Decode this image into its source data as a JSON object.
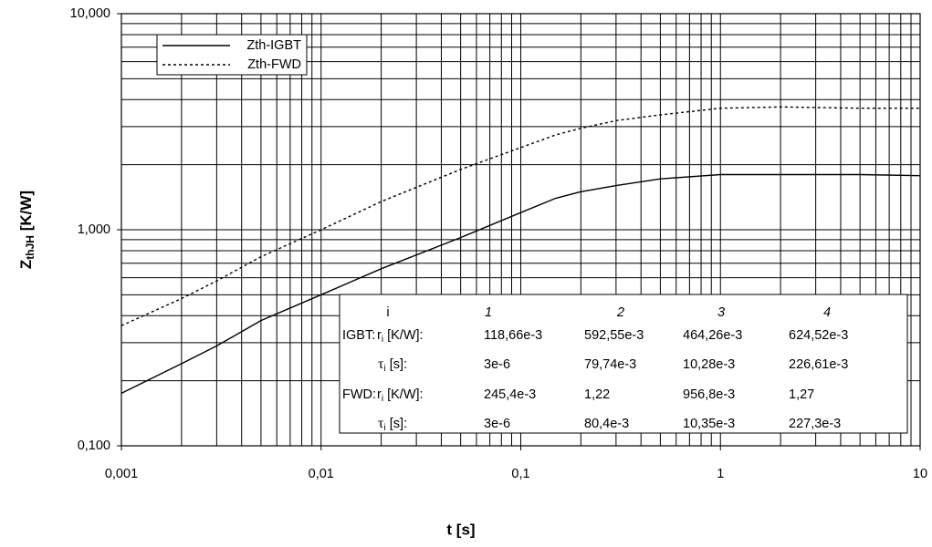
{
  "chart_data": {
    "type": "line",
    "x_label": "t [s]",
    "y_label": {
      "main": "Z",
      "sub": "thJH",
      "unit": " [K/W]"
    },
    "x": [
      0.001,
      0.002,
      0.003,
      0.005,
      0.01,
      0.02,
      0.05,
      0.1,
      0.15,
      0.2,
      0.3,
      0.5,
      1,
      2,
      5,
      10
    ],
    "series": [
      {
        "name": "Zth-IGBT",
        "color": "#000000",
        "dash": "solid",
        "values": [
          0.175,
          0.24,
          0.29,
          0.38,
          0.5,
          0.66,
          0.92,
          1.2,
          1.4,
          1.5,
          1.6,
          1.72,
          1.8,
          1.8,
          1.8,
          1.78
        ]
      },
      {
        "name": "Zth-FWD",
        "color": "#000000",
        "dash": "dotted",
        "values": [
          0.36,
          0.48,
          0.58,
          0.75,
          1.0,
          1.35,
          1.9,
          2.4,
          2.75,
          2.95,
          3.2,
          3.4,
          3.65,
          3.7,
          3.65,
          3.65
        ]
      }
    ],
    "log_x": true,
    "log_y": true,
    "grid": true,
    "minor_grid": true,
    "legend": "top-left",
    "xlim": [
      0.001,
      10
    ],
    "xticks": [
      {
        "value": 0.001,
        "label": "0,001"
      },
      {
        "value": 0.01,
        "label": "0,01"
      },
      {
        "value": 0.1,
        "label": "0,1"
      },
      1,
      10
    ],
    "ylim": [
      0.1,
      10
    ],
    "yticks": [
      {
        "value": 0.1,
        "label": "0,100"
      },
      {
        "value": 1,
        "label": "1,000"
      },
      {
        "value": 10,
        "label": "10,000"
      }
    ]
  },
  "table": {
    "header": [
      "i",
      "1",
      "2",
      "3",
      "4"
    ],
    "rows": [
      {
        "group": "IGBT:",
        "sym": "r",
        "sub": "i",
        "unit": " [K/W]:",
        "values": [
          "118,66e-3",
          "592,55e-3",
          "464,26e-3",
          "624,52e-3"
        ]
      },
      {
        "group": "",
        "sym": "τ",
        "sub": "i",
        "unit": " [s]:",
        "values": [
          "3e-6",
          "79,74e-3",
          "10,28e-3",
          "226,61e-3"
        ]
      },
      {
        "group": "FWD:",
        "sym": "r",
        "sub": "i",
        "unit": " [K/W]:",
        "values": [
          "245,4e-3",
          "1,22",
          "956,8e-3",
          "1,27"
        ]
      },
      {
        "group": "",
        "sym": "τ",
        "sub": "i",
        "unit": " [s]:",
        "values": [
          "3e-6",
          "80,4e-3",
          "10,35e-3",
          "227,3e-3"
        ]
      }
    ]
  }
}
